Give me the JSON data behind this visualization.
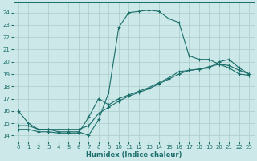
{
  "xlabel": "Humidex (Indice chaleur)",
  "bg_color": "#cce8e8",
  "grid_color": "#aacccc",
  "line_color": "#1a6e6a",
  "xlim": [
    -0.5,
    23.5
  ],
  "ylim": [
    13.5,
    24.8
  ],
  "xticks": [
    0,
    1,
    2,
    3,
    4,
    5,
    6,
    7,
    8,
    9,
    10,
    11,
    12,
    13,
    14,
    15,
    16,
    17,
    18,
    19,
    20,
    21,
    22,
    23
  ],
  "yticks": [
    14,
    15,
    16,
    17,
    18,
    19,
    20,
    21,
    22,
    23,
    24
  ],
  "line1_x": [
    0,
    1,
    2,
    3,
    4,
    5,
    6,
    7,
    8,
    9,
    10,
    11,
    12,
    13,
    14,
    15,
    16,
    17,
    18,
    19,
    20,
    21,
    22,
    23
  ],
  "line1_y": [
    16.0,
    15.0,
    14.5,
    14.5,
    14.3,
    14.3,
    14.3,
    14.0,
    15.3,
    17.5,
    22.8,
    24.0,
    24.1,
    24.2,
    24.1,
    23.5,
    23.2,
    20.5,
    20.2,
    20.2,
    19.8,
    19.5,
    19.0,
    18.9
  ],
  "line2_x": [
    0,
    1,
    2,
    3,
    4,
    5,
    6,
    7,
    8,
    9,
    10,
    11,
    12,
    13,
    14,
    15,
    16,
    17,
    18,
    19,
    20,
    21,
    22,
    23
  ],
  "line2_y": [
    14.8,
    14.8,
    14.5,
    14.5,
    14.5,
    14.5,
    14.5,
    14.8,
    15.8,
    16.3,
    16.8,
    17.2,
    17.5,
    17.8,
    18.2,
    18.6,
    19.0,
    19.3,
    19.4,
    19.6,
    19.8,
    19.7,
    19.3,
    19.0
  ],
  "line3_x": [
    0,
    1,
    2,
    3,
    4,
    5,
    6,
    7,
    8,
    9,
    10,
    11,
    12,
    13,
    14,
    15,
    16,
    17,
    18,
    19,
    20,
    21,
    22,
    23
  ],
  "line3_y": [
    14.5,
    14.5,
    14.3,
    14.3,
    14.2,
    14.2,
    14.2,
    15.5,
    17.0,
    16.5,
    17.0,
    17.3,
    17.6,
    17.9,
    18.3,
    18.7,
    19.2,
    19.3,
    19.4,
    19.5,
    20.0,
    20.2,
    19.5,
    19.0
  ]
}
